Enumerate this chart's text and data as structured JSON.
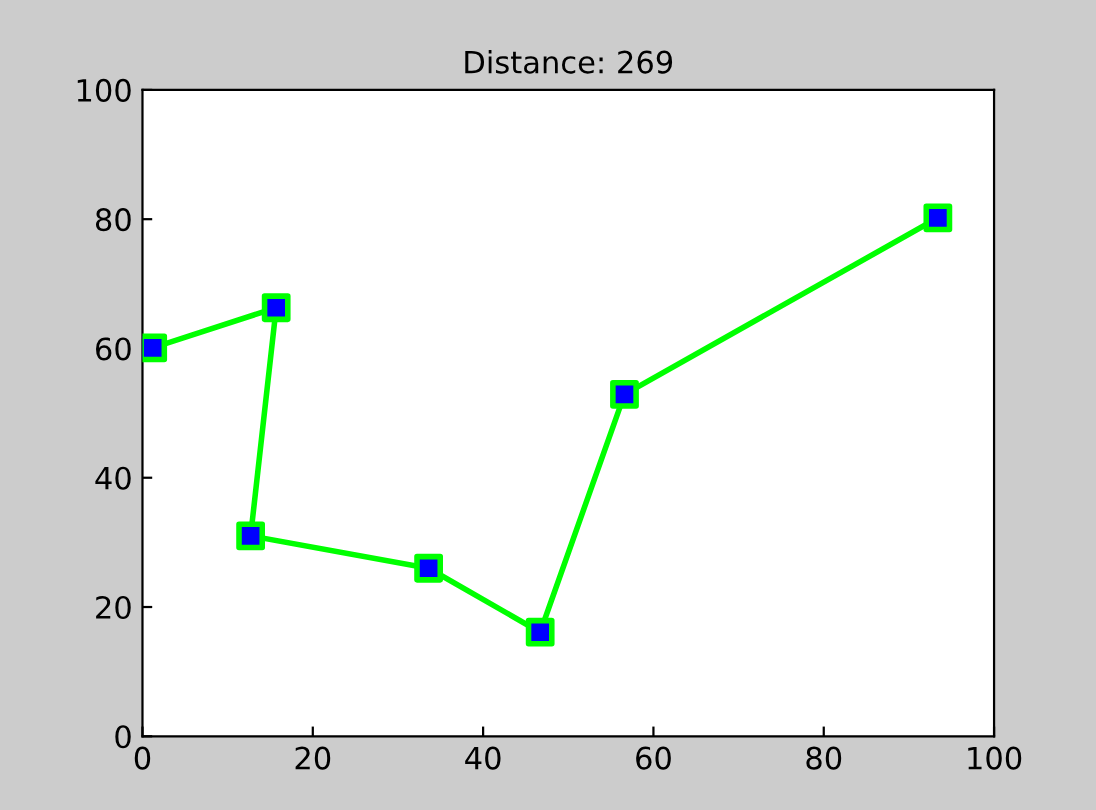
{
  "chart_data": {
    "type": "line",
    "title": "Distance: 269",
    "x": [
      1.2,
      15.7,
      12.7,
      33.6,
      46.7,
      56.6,
      93.4
    ],
    "series": [
      {
        "color": "#00ff00",
        "colors": [
          "#0000ff",
          "#0000ff",
          "#0000ff",
          "#0000ff",
          "#0000ff",
          "#0000ff",
          "#0000ff"
        ],
        "values": [
          60.1,
          66.3,
          31.0,
          26.0,
          16.1,
          52.9,
          80.2
        ]
      }
    ],
    "xlim": [
      0,
      100
    ],
    "ylim": [
      0,
      100
    ],
    "xticks": [
      0,
      20,
      40,
      60,
      80,
      100
    ],
    "yticks": [
      0,
      20,
      40,
      60,
      80,
      100
    ],
    "grid": false,
    "legend": false,
    "marker": "square",
    "line_style": "solid"
  }
}
